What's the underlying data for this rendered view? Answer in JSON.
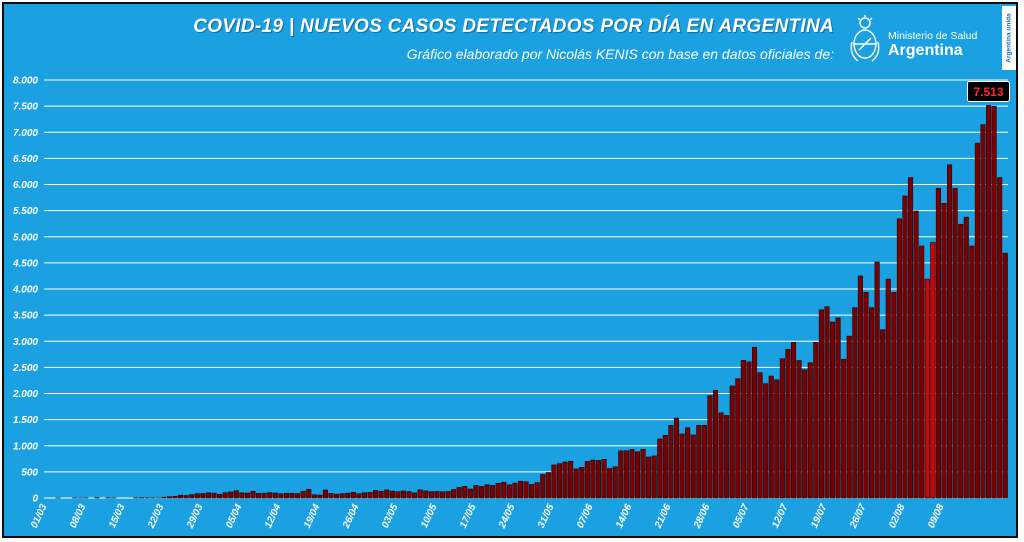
{
  "title": "COVID-19  |  NUEVOS CASOS DETECTADOS POR DÍA EN ARGENTINA",
  "subtitle": "Gráfico elaborado por Nicolás KENIS con base en datos oficiales de:",
  "logo": {
    "ministry": "Ministerio de Salud",
    "country": "Argentina",
    "icon": "argentina-coat-of-arms-icon"
  },
  "badge": "Argentina unida",
  "colors": {
    "background": "#1ba1e2",
    "bar": "#7a0000",
    "bar_highlight": "#d80000",
    "gridline": "#ffffff",
    "text": "#ffffff"
  },
  "chart_data": {
    "type": "bar",
    "title": "COVID-19  |  NUEVOS CASOS DETECTADOS POR DÍA EN ARGENTINA",
    "subtitle": "Gráfico elaborado por Nicolás KENIS con base en datos oficiales de:",
    "xlabel": "",
    "ylabel": "",
    "ylim": [
      0,
      8000
    ],
    "grid": true,
    "yticks": [
      0,
      500,
      1000,
      1500,
      2000,
      2500,
      3000,
      3500,
      4000,
      4500,
      5000,
      5500,
      6000,
      6500,
      7000,
      7500,
      8000
    ],
    "ytick_labels": [
      "0",
      "500",
      "1.000",
      "1.500",
      "2.000",
      "2.500",
      "3.000",
      "3.500",
      "4.000",
      "4.500",
      "5.000",
      "5.500",
      "6.000",
      "6.500",
      "7.000",
      "7.500",
      "8.000"
    ],
    "xtick_labels": [
      "01/03",
      "08/03",
      "15/03",
      "22/03",
      "29/03",
      "05/04",
      "12/04",
      "19/04",
      "26/04",
      "03/05",
      "10/05",
      "17/05",
      "24/05",
      "31/05",
      "07/06",
      "14/06",
      "21/06",
      "28/06",
      "05/07",
      "12/07",
      "19/07",
      "26/07",
      "02/08",
      "09/08"
    ],
    "start_date": "01/03",
    "highlight_dates": [
      "06/08",
      "07/08"
    ],
    "peak_annotation": "7.513",
    "values": [
      0,
      0,
      1,
      0,
      0,
      2,
      1,
      2,
      0,
      5,
      0,
      3,
      2,
      0,
      0,
      0,
      3,
      5,
      4,
      3,
      1,
      16,
      24,
      34,
      55,
      48,
      66,
      84,
      87,
      101,
      94,
      72,
      101,
      117,
      140,
      101,
      95,
      131,
      89,
      93,
      104,
      96,
      82,
      92,
      91,
      86,
      131,
      165,
      63,
      58,
      154,
      90,
      75,
      85,
      93,
      109,
      83,
      102,
      107,
      145,
      128,
      155,
      133,
      121,
      136,
      124,
      98,
      158,
      137,
      123,
      126,
      121,
      125,
      163,
      202,
      224,
      173,
      240,
      222,
      256,
      241,
      282,
      303,
      253,
      286,
      322,
      312,
      260,
      296,
      451,
      489,
      633,
      658,
      689,
      704,
      560,
      589,
      701,
      726,
      719,
      739,
      565,
      598,
      904,
      906,
      929,
      884,
      932,
      786,
      806,
      1130,
      1199,
      1391,
      1531,
      1226,
      1346,
      1207,
      1391,
      1393,
      1958,
      2060,
      1633,
      1581,
      2146,
      2285,
      2635,
      2606,
      2886,
      2401,
      2189,
      2335,
      2262,
      2667,
      2845,
      2979,
      2632,
      2456,
      2590,
      2979,
      3604,
      3663,
      3367,
      3449,
      2657,
      3099,
      3645,
      4250,
      3937,
      3645,
      4518,
      3223,
      4190,
      3937,
      5344,
      5782,
      6134,
      5493,
      4824,
      4190,
      4890,
      5929,
      5641,
      6377,
      5929,
      5241,
      5376,
      4824,
      6792,
      7147,
      7513,
      7498,
      6134,
      4688
    ]
  }
}
